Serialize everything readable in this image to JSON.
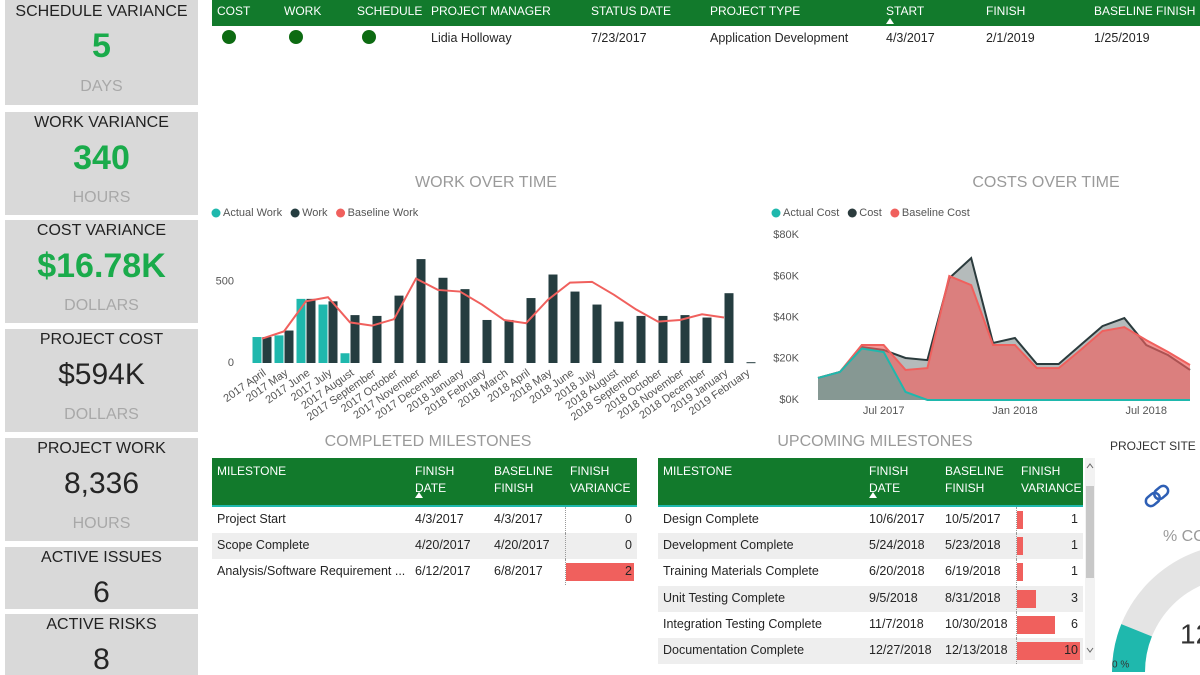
{
  "kpis": [
    {
      "title": "SCHEDULE VARIANCE",
      "value": 5,
      "unit": "DAYS",
      "color": "#1aab4b"
    },
    {
      "title": "WORK VARIANCE",
      "value": 340,
      "unit": "HOURS",
      "color": "#1aab4b"
    },
    {
      "title": "COST VARIANCE",
      "value": "$16.78K",
      "unit": "DOLLARS",
      "color": "#1aab4b"
    },
    {
      "title": "PROJECT COST",
      "value": "$594K",
      "unit": "DOLLARS",
      "color": "#252525"
    },
    {
      "title": "PROJECT WORK",
      "value": "8,336",
      "unit": "HOURS",
      "color": "#252525"
    },
    {
      "title": "ACTIVE ISSUES",
      "value": 6,
      "color": "#252525"
    },
    {
      "title": "ACTIVE RISKS",
      "value": 8,
      "color": "#252525"
    }
  ],
  "project_table": {
    "header_color": "#127a2c",
    "headers": [
      "COST",
      "WORK",
      "SCHEDULE",
      "PROJECT MANAGER",
      "STATUS DATE",
      "PROJECT TYPE",
      "START",
      "FINISH",
      "BASELINE FINISH"
    ],
    "status_colors": [
      "#0d6b12",
      "#0d6b12",
      "#0d6b12"
    ],
    "values": [
      "Lidia Holloway",
      "7/23/2017",
      "Application Development",
      "4/3/2017",
      "2/1/2019",
      "1/25/2019"
    ]
  },
  "chart_data": [
    {
      "type": "bar_line",
      "title": "WORK OVER TIME",
      "categories": [
        "2017 April",
        "2017 May",
        "2017 June",
        "2017 July",
        "2017 August",
        "2017 September",
        "2017 October",
        "2017 November",
        "2017 December",
        "2018 January",
        "2018 February",
        "2018 March",
        "2018 April",
        "2018 May",
        "2018 June",
        "2018 July",
        "2018 August",
        "2018 September",
        "2018 October",
        "2018 November",
        "2018 December",
        "2019 January",
        "2019 February"
      ],
      "series": [
        {
          "name": "Actual Work",
          "color": "#1fb8ad",
          "kind": "bar",
          "values": [
            160,
            170,
            395,
            360,
            60,
            null,
            null,
            null,
            null,
            null,
            null,
            null,
            null,
            null,
            null,
            null,
            null,
            null,
            null,
            null,
            null,
            null,
            null
          ]
        },
        {
          "name": "Work",
          "color": "#253d40",
          "kind": "bar",
          "values": [
            160,
            200,
            395,
            380,
            295,
            290,
            415,
            640,
            525,
            455,
            265,
            265,
            400,
            545,
            440,
            360,
            255,
            290,
            290,
            295,
            280,
            430,
            5
          ]
        },
        {
          "name": "Baseline Work",
          "color": "#f0605d",
          "kind": "line",
          "values": [
            150,
            195,
            380,
            405,
            250,
            230,
            270,
            520,
            450,
            440,
            360,
            265,
            245,
            390,
            495,
            500,
            420,
            330,
            255,
            265,
            300,
            280,
            null
          ]
        }
      ],
      "ylim": [
        0,
        850
      ],
      "yticks": [
        0,
        500
      ]
    },
    {
      "type": "area",
      "title": "COSTS OVER TIME",
      "x": [
        "2017-04",
        "2017-05",
        "2017-06",
        "2017-07",
        "2017-08",
        "2017-09",
        "2017-10",
        "2017-11",
        "2017-12",
        "2018-01",
        "2018-02",
        "2018-03",
        "2018-04",
        "2018-05",
        "2018-06",
        "2018-07",
        "2018-08",
        "2018-09"
      ],
      "series": [
        {
          "name": "Actual Cost",
          "color": "#1fb8ad",
          "values": [
            10700,
            13600,
            25000,
            23300,
            3900,
            0,
            0,
            0,
            0,
            0,
            0,
            0,
            0,
            0,
            0,
            0,
            0,
            0
          ]
        },
        {
          "name": "Cost",
          "color": "#2b3b3d",
          "values": [
            10700,
            13600,
            25700,
            24300,
            20400,
            19400,
            59200,
            68900,
            27700,
            30100,
            17500,
            17500,
            26700,
            35900,
            39800,
            26700,
            21800,
            14600
          ]
        },
        {
          "name": "Baseline Cost",
          "color": "#f0605d",
          "values": [
            10700,
            13600,
            26700,
            26700,
            14600,
            15500,
            60200,
            55800,
            26700,
            26700,
            15500,
            15500,
            24300,
            33500,
            35400,
            29100,
            23300,
            17000
          ]
        }
      ],
      "xlim": [
        "2017-04",
        "2018-09"
      ],
      "xticks": [
        {
          "value": "2017-07",
          "label": "Jul 2017"
        },
        {
          "value": "2018-01",
          "label": "Jan 2018"
        },
        {
          "value": "2018-07",
          "label": "Jul 2018"
        }
      ],
      "ylim": [
        0,
        85000
      ],
      "yticks": [
        {
          "value": 0,
          "label": "$0K"
        },
        {
          "value": 20000,
          "label": "$20K"
        },
        {
          "value": 40000,
          "label": "$40K"
        },
        {
          "value": 60000,
          "label": "$60K"
        },
        {
          "value": 80000,
          "label": "$80K"
        }
      ]
    }
  ],
  "completed_milestones": {
    "title": "COMPLETED MILESTONES",
    "header_color": "#127a2c",
    "bar_color": "#f0605d",
    "headers": [
      "MILESTONE",
      "FINISH DATE",
      "BASELINE FINISH",
      "FINISH VARIANCE"
    ],
    "rows": [
      [
        "Project Start",
        "4/3/2017",
        "4/3/2017",
        0
      ],
      [
        "Scope Complete",
        "4/20/2017",
        "4/20/2017",
        0
      ],
      [
        "Analysis/Software Requirement ...",
        "6/12/2017",
        "6/8/2017",
        2
      ]
    ]
  },
  "upcoming_milestones": {
    "title": "UPCOMING MILESTONES",
    "header_color": "#127a2c",
    "bar_color": "#f0605d",
    "headers": [
      "MILESTONE",
      "FINISH DATE",
      "BASELINE FINISH",
      "FINISH VARIANCE"
    ],
    "rows": [
      [
        "Design Complete",
        "10/6/2017",
        "10/5/2017",
        1
      ],
      [
        "Development Complete",
        "5/24/2018",
        "5/23/2018",
        1
      ],
      [
        "Training Materials Complete",
        "6/20/2018",
        "6/19/2018",
        1
      ],
      [
        "Unit Testing Complete",
        "9/5/2018",
        "8/31/2018",
        3
      ],
      [
        "Integration Testing Complete",
        "11/7/2018",
        "10/30/2018",
        6
      ],
      [
        "Documentation Complete",
        "12/27/2018",
        "12/13/2018",
        10
      ]
    ]
  },
  "project_site": {
    "title": "PROJECT SITE",
    "gauge_title": "% CO",
    "gauge_value": 12,
    "gauge_min": {
      "value": 0,
      "label": "0 %"
    }
  }
}
